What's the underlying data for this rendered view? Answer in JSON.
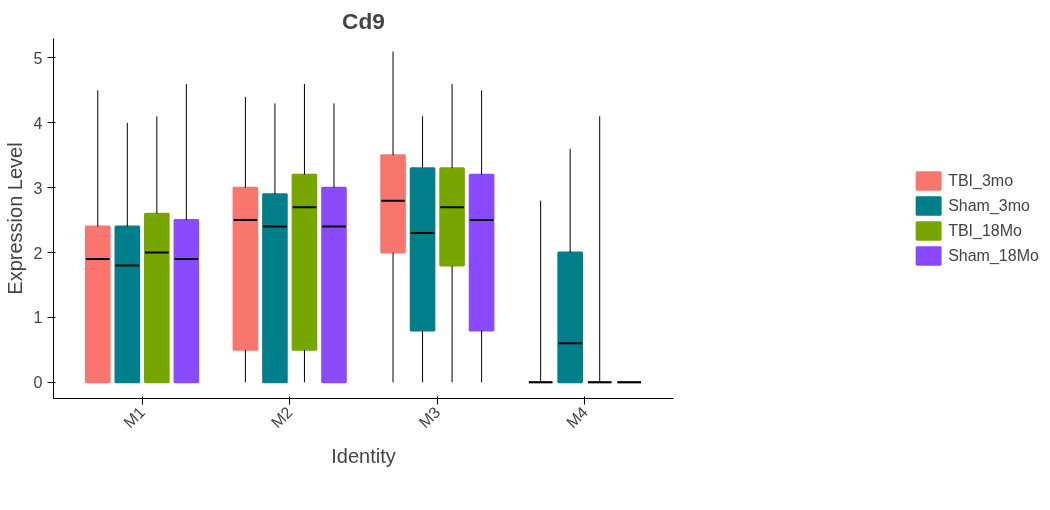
{
  "chart_data": {
    "type": "box",
    "title": "Cd9",
    "xlabel": "Identity",
    "ylabel": "Expression Level",
    "categories": [
      "M1",
      "M2",
      "M3",
      "M4"
    ],
    "ylim": [
      -0.25,
      5.3
    ],
    "yticks": [
      0,
      1,
      2,
      3,
      4,
      5
    ],
    "grid": false,
    "legend": "right",
    "series": [
      {
        "name": "TBI_3mo",
        "color": "#f8766d",
        "boxes": [
          {
            "low": 0,
            "q1": 0,
            "median": 1.9,
            "q3": 2.4,
            "high": 4.5
          },
          {
            "low": 0,
            "q1": 0.5,
            "median": 2.5,
            "q3": 3.0,
            "high": 4.4
          },
          {
            "low": 0,
            "q1": 2.0,
            "median": 2.8,
            "q3": 3.5,
            "high": 5.1
          },
          {
            "low": 0,
            "q1": 0,
            "median": 0,
            "q3": 0,
            "high": 2.8
          }
        ]
      },
      {
        "name": "Sham_3mo",
        "color": "#007f8a",
        "boxes": [
          {
            "low": 0,
            "q1": 0,
            "median": 1.8,
            "q3": 2.4,
            "high": 4.0
          },
          {
            "low": 0,
            "q1": 0,
            "median": 2.4,
            "q3": 2.9,
            "high": 4.3
          },
          {
            "low": 0,
            "q1": 0.8,
            "median": 2.3,
            "q3": 3.3,
            "high": 4.1
          },
          {
            "low": 0,
            "q1": 0,
            "median": 0.6,
            "q3": 2.0,
            "high": 3.6
          }
        ]
      },
      {
        "name": "TBI_18Mo",
        "color": "#78a600",
        "boxes": [
          {
            "low": 0,
            "q1": 0,
            "median": 2.0,
            "q3": 2.6,
            "high": 4.1
          },
          {
            "low": 0,
            "q1": 0.5,
            "median": 2.7,
            "q3": 3.2,
            "high": 4.6
          },
          {
            "low": 0,
            "q1": 1.8,
            "median": 2.7,
            "q3": 3.3,
            "high": 4.6
          },
          {
            "low": 0,
            "q1": 0,
            "median": 0,
            "q3": 0,
            "high": 4.1
          }
        ]
      },
      {
        "name": "Sham_18Mo",
        "color": "#8a4bff",
        "boxes": [
          {
            "low": 0,
            "q1": 0,
            "median": 1.9,
            "q3": 2.5,
            "high": 4.6
          },
          {
            "low": 0,
            "q1": 0,
            "median": 2.4,
            "q3": 3.0,
            "high": 4.3
          },
          {
            "low": 0,
            "q1": 0.8,
            "median": 2.5,
            "q3": 3.2,
            "high": 4.5
          },
          {
            "low": 0,
            "q1": 0,
            "median": 0,
            "q3": 0,
            "high": 0
          }
        ]
      }
    ]
  }
}
